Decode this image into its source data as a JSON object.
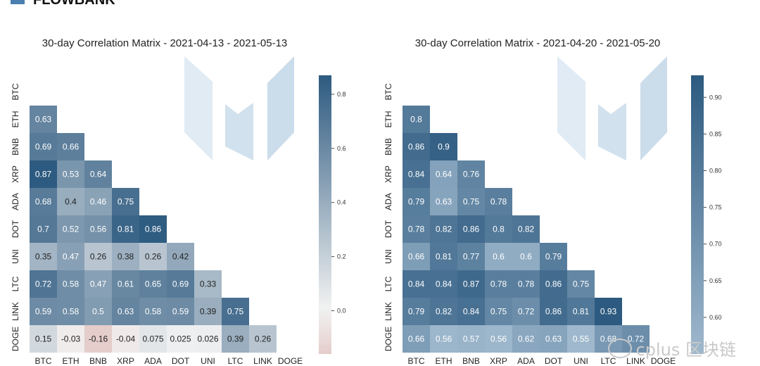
{
  "header": {
    "logo_text": "FLOWBANK"
  },
  "watermark": {
    "text": "cplus 区块链"
  },
  "chart_data": [
    {
      "type": "heatmap",
      "title": "30-day Correlation Matrix - 2021-04-13 - 2021-05-13",
      "labels": [
        "BTC",
        "ETH",
        "BNB",
        "XRP",
        "ADA",
        "DOT",
        "UNI",
        "LTC",
        "LINK",
        "DOGE"
      ],
      "matrix": [
        [],
        [
          "0.63"
        ],
        [
          "0.69",
          "0.66"
        ],
        [
          "0.87",
          "0.53",
          "0.64"
        ],
        [
          "0.68",
          "0.4",
          "0.46",
          "0.75"
        ],
        [
          "0.7",
          "0.52",
          "0.56",
          "0.81",
          "0.86"
        ],
        [
          "0.35",
          "0.47",
          "0.26",
          "0.38",
          "0.26",
          "0.42"
        ],
        [
          "0.72",
          "0.58",
          "0.47",
          "0.61",
          "0.65",
          "0.69",
          "0.33"
        ],
        [
          "0.59",
          "0.58",
          "0.5",
          "0.63",
          "0.58",
          "0.59",
          "0.39",
          "0.75"
        ],
        [
          "0.15",
          "-0.03",
          "-0.16",
          "-0.04",
          "0.075",
          "0.025",
          "0.026",
          "0.39",
          "0.26"
        ]
      ],
      "colorbar": {
        "min": -0.16,
        "max": 0.87,
        "ticks": [
          "0.8",
          "0.6",
          "0.4",
          "0.2",
          "0.0"
        ]
      },
      "colorscale": {
        "low": "#e4cdca",
        "mid": "#f3f3f3",
        "high": "#2d5a80"
      }
    },
    {
      "type": "heatmap",
      "title": "30-day Correlation Matrix - 2021-04-20 - 2021-05-20",
      "labels": [
        "BTC",
        "ETH",
        "BNB",
        "XRP",
        "ADA",
        "DOT",
        "UNI",
        "LTC",
        "LINK",
        "DOGE"
      ],
      "matrix": [
        [],
        [
          "0.8"
        ],
        [
          "0.86",
          "0.9"
        ],
        [
          "0.84",
          "0.64",
          "0.76"
        ],
        [
          "0.79",
          "0.63",
          "0.75",
          "0.78"
        ],
        [
          "0.78",
          "0.82",
          "0.86",
          "0.8",
          "0.82"
        ],
        [
          "0.66",
          "0.81",
          "0.77",
          "0.6",
          "0.6",
          "0.79"
        ],
        [
          "0.84",
          "0.84",
          "0.87",
          "0.78",
          "0.78",
          "0.86",
          "0.75"
        ],
        [
          "0.79",
          "0.82",
          "0.84",
          "0.75",
          "0.72",
          "0.86",
          "0.81",
          "0.93"
        ],
        [
          "0.66",
          "0.56",
          "0.57",
          "0.56",
          "0.62",
          "0.63",
          "0.55",
          "0.68",
          "0.72"
        ]
      ],
      "colorbar": {
        "min": 0.55,
        "max": 0.93,
        "ticks": [
          "0.90",
          "0.85",
          "0.80",
          "0.75",
          "0.70",
          "0.65",
          "0.60"
        ]
      },
      "colorscale": {
        "low": "#9fb8cd",
        "high": "#2d5a80"
      }
    }
  ]
}
